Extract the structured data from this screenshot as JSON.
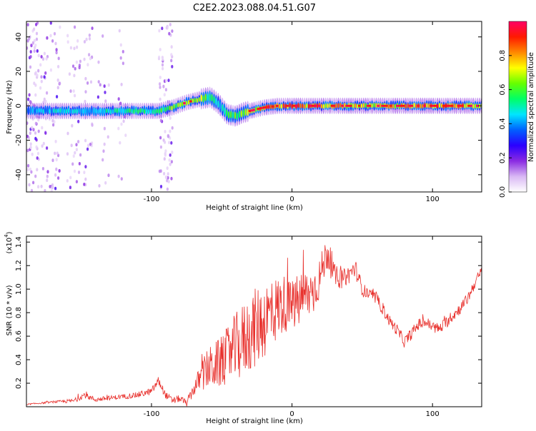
{
  "title": "C2E2.2023.088.04.51.G07",
  "chart_data": [
    {
      "type": "heatmap",
      "title": "C2E2.2023.088.04.51.G07",
      "xlabel": "Height of straight line (km)",
      "ylabel": "Frequency (Hz)",
      "xlim": [
        -189,
        135
      ],
      "ylim": [
        -50,
        49
      ],
      "xticks": [
        -100,
        0,
        100
      ],
      "yticks": [
        -40,
        -20,
        0,
        20,
        40
      ],
      "colorbar": {
        "label": "Normalized spectral amplitude",
        "range": [
          0,
          1
        ],
        "ticks": [
          "0.0",
          "0.2",
          "0.4",
          "0.6",
          "0.8"
        ],
        "colormap": [
          "#ffffff",
          "#d9b8f4",
          "#8a2be2",
          "#2a00ff",
          "#0060ff",
          "#00e5ff",
          "#00ff66",
          "#66ff00",
          "#ffff00",
          "#ff8800",
          "#ff1a00",
          "#ff0066"
        ]
      },
      "ridge": {
        "description": "dominant Doppler frequency ridge",
        "x": [
          -189,
          -170,
          -150,
          -130,
          -110,
          -95,
          -85,
          -75,
          -65,
          -58,
          -52,
          -46,
          -40,
          -35,
          -30,
          -25,
          -20,
          -10,
          0,
          20,
          50,
          80,
          110,
          135
        ],
        "y": [
          -3,
          -3,
          -3,
          -3,
          -3,
          -3,
          -1,
          2,
          4,
          5,
          1,
          -5,
          -6,
          -4,
          -3,
          -2,
          -1,
          0,
          0,
          0,
          0,
          0,
          0,
          0
        ],
        "peak_amplitude": [
          0.45,
          0.5,
          0.5,
          0.55,
          0.6,
          0.6,
          0.7,
          0.8,
          0.75,
          0.6,
          0.5,
          0.6,
          0.7,
          0.75,
          0.8,
          0.85,
          0.9,
          0.9,
          0.95,
          0.9,
          0.8,
          0.85,
          0.95,
          0.8
        ]
      }
    },
    {
      "type": "line",
      "xlabel": "Height of straight line (km)",
      "ylabel": "SNR (10 * v/v)",
      "yscale_label": "(x10",
      "yscale_exp": "4",
      "yscale_close": ")",
      "xlim": [
        -189,
        135
      ],
      "ylim": [
        0,
        1.45
      ],
      "xticks": [
        -100,
        0,
        100
      ],
      "yticks": [
        0.2,
        0.4,
        0.6,
        0.8,
        1.0,
        1.2,
        1.4
      ],
      "ytick_labels": [
        "0.2",
        "0.4",
        "0.6",
        "0.8",
        "1.0",
        "1.2",
        "1.4"
      ],
      "line_color": "#e8302c",
      "series": [
        {
          "name": "SNR",
          "x": [
            -189,
            -170,
            -155,
            -148,
            -140,
            -125,
            -110,
            -100,
            -95,
            -90,
            -85,
            -80,
            -75,
            -70,
            -65,
            -60,
            -55,
            -50,
            -45,
            -40,
            -35,
            -30,
            -25,
            -20,
            -15,
            -10,
            -5,
            0,
            5,
            10,
            15,
            20,
            25,
            30,
            35,
            40,
            45,
            50,
            55,
            60,
            65,
            70,
            75,
            80,
            85,
            90,
            95,
            100,
            105,
            110,
            115,
            120,
            125,
            130,
            135
          ],
          "values": [
            0.02,
            0.04,
            0.05,
            0.1,
            0.06,
            0.08,
            0.1,
            0.13,
            0.22,
            0.1,
            0.05,
            0.07,
            0.03,
            0.15,
            0.25,
            0.32,
            0.35,
            0.38,
            0.45,
            0.5,
            0.56,
            0.63,
            0.68,
            0.74,
            0.8,
            0.84,
            0.88,
            0.85,
            0.9,
            0.95,
            0.98,
            1.1,
            1.32,
            1.12,
            1.08,
            1.12,
            1.18,
            1.0,
            0.95,
            0.92,
            0.82,
            0.72,
            0.65,
            0.55,
            0.62,
            0.7,
            0.72,
            0.68,
            0.66,
            0.72,
            0.78,
            0.84,
            0.92,
            1.05,
            1.15
          ],
          "noise": [
            0.005,
            0.008,
            0.02,
            0.025,
            0.02,
            0.02,
            0.025,
            0.03,
            0.04,
            0.03,
            0.03,
            0.03,
            0.03,
            0.06,
            0.12,
            0.18,
            0.2,
            0.22,
            0.25,
            0.3,
            0.32,
            0.34,
            0.34,
            0.34,
            0.3,
            0.28,
            0.25,
            0.2,
            0.25,
            0.22,
            0.2,
            0.18,
            0.15,
            0.1,
            0.08,
            0.08,
            0.08,
            0.06,
            0.05,
            0.05,
            0.05,
            0.05,
            0.05,
            0.05,
            0.05,
            0.05,
            0.05,
            0.05,
            0.05,
            0.05,
            0.05,
            0.05,
            0.05,
            0.05,
            0.05
          ]
        }
      ]
    }
  ]
}
